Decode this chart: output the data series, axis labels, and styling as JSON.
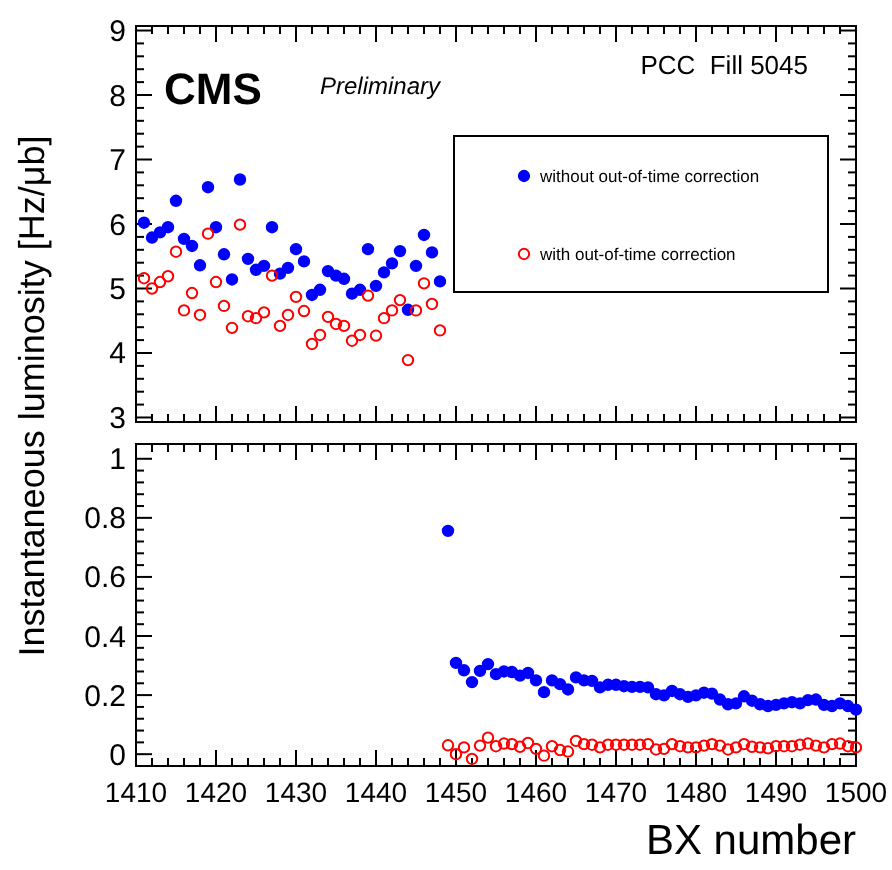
{
  "chart_data": [
    {
      "type": "scatter",
      "ylabel": "Instantaneous luminosity [Hz/μb]",
      "annotations": [
        "CMS",
        "Preliminary",
        "PCC  Fill 5045"
      ],
      "legend": "top right",
      "marker": "circle",
      "tick_labels": "y",
      "grid": false,
      "x": [
        1411,
        1412,
        1413,
        1414,
        1415,
        1416,
        1417,
        1418,
        1419,
        1420,
        1421,
        1422,
        1423,
        1424,
        1425,
        1426,
        1427,
        1428,
        1429,
        1430,
        1431,
        1432,
        1433,
        1434,
        1435,
        1436,
        1437,
        1438,
        1439,
        1440,
        1441,
        1442,
        1443,
        1444,
        1445,
        1446,
        1447,
        1448
      ],
      "xlim": [
        1410,
        1500
      ],
      "xticks": [
        1410,
        1420,
        1430,
        1440,
        1450,
        1460,
        1470,
        1480,
        1490,
        1500
      ],
      "ylim": [
        2.93,
        9.07
      ],
      "yticks": [
        3,
        4,
        5,
        6,
        7,
        8,
        9
      ],
      "series": [
        {
          "name": "without out-of-time correction",
          "color": "#0000ff",
          "values": [
            6.02,
            5.79,
            5.87,
            5.95,
            6.36,
            5.77,
            5.66,
            5.36,
            6.57,
            5.95,
            5.53,
            5.14,
            6.69,
            5.46,
            5.29,
            5.35,
            5.95,
            5.23,
            5.32,
            5.61,
            5.42,
            4.9,
            4.98,
            5.27,
            5.2,
            5.15,
            4.92,
            4.98,
            5.61,
            5.04,
            5.25,
            5.39,
            5.58,
            4.67,
            5.35,
            5.83,
            5.56,
            5.11
          ]
        },
        {
          "name": "with out-of-time correction",
          "color": "#ff0000",
          "values": [
            5.16,
            5.0,
            5.1,
            5.19,
            5.57,
            4.66,
            4.93,
            4.59,
            5.85,
            5.1,
            4.73,
            4.39,
            5.99,
            4.57,
            4.54,
            4.63,
            5.2,
            4.42,
            4.59,
            4.87,
            4.65,
            4.14,
            4.28,
            4.56,
            4.45,
            4.42,
            4.19,
            4.28,
            4.89,
            4.27,
            4.54,
            4.66,
            4.82,
            3.89,
            4.66,
            5.08,
            4.76,
            4.35
          ]
        }
      ]
    },
    {
      "type": "scatter",
      "xlabel": "BX number",
      "marker": "circle",
      "grid": false,
      "x": [
        1449,
        1450,
        1451,
        1452,
        1453,
        1454,
        1455,
        1456,
        1457,
        1458,
        1459,
        1460,
        1461,
        1462,
        1463,
        1464,
        1465,
        1466,
        1467,
        1468,
        1469,
        1470,
        1471,
        1472,
        1473,
        1474,
        1475,
        1476,
        1477,
        1478,
        1479,
        1480,
        1481,
        1482,
        1483,
        1484,
        1485,
        1486,
        1487,
        1488,
        1489,
        1490,
        1491,
        1492,
        1493,
        1494,
        1495,
        1496,
        1497,
        1498,
        1499,
        1500
      ],
      "xlim": [
        1410,
        1500
      ],
      "xticks": [
        1410,
        1420,
        1430,
        1440,
        1450,
        1460,
        1470,
        1480,
        1490,
        1500
      ],
      "ylim": [
        -0.04,
        1.05
      ],
      "yticks": [
        0,
        0.2,
        0.4,
        0.6,
        0.8,
        1
      ],
      "series": [
        {
          "color": "#0000ff",
          "values": [
            0.756,
            0.309,
            0.284,
            0.244,
            0.282,
            0.305,
            0.271,
            0.28,
            0.278,
            0.266,
            0.275,
            0.25,
            0.21,
            0.25,
            0.237,
            0.219,
            0.26,
            0.25,
            0.248,
            0.226,
            0.235,
            0.235,
            0.23,
            0.228,
            0.228,
            0.226,
            0.203,
            0.199,
            0.214,
            0.203,
            0.194,
            0.199,
            0.208,
            0.205,
            0.185,
            0.169,
            0.172,
            0.196,
            0.181,
            0.169,
            0.163,
            0.167,
            0.172,
            0.176,
            0.172,
            0.183,
            0.185,
            0.167,
            0.163,
            0.172,
            0.163,
            0.151
          ]
        },
        {
          "color": "#ff0000",
          "values": [
            0.03,
            0.0,
            0.023,
            -0.016,
            0.029,
            0.056,
            0.027,
            0.036,
            0.034,
            0.025,
            0.038,
            0.018,
            -0.005,
            0.027,
            0.014,
            0.009,
            0.045,
            0.034,
            0.032,
            0.023,
            0.032,
            0.032,
            0.032,
            0.032,
            0.032,
            0.034,
            0.016,
            0.018,
            0.034,
            0.027,
            0.023,
            0.023,
            0.029,
            0.034,
            0.029,
            0.016,
            0.023,
            0.034,
            0.025,
            0.023,
            0.02,
            0.027,
            0.027,
            0.027,
            0.032,
            0.036,
            0.029,
            0.023,
            0.034,
            0.036,
            0.027,
            0.023
          ]
        }
      ]
    }
  ]
}
